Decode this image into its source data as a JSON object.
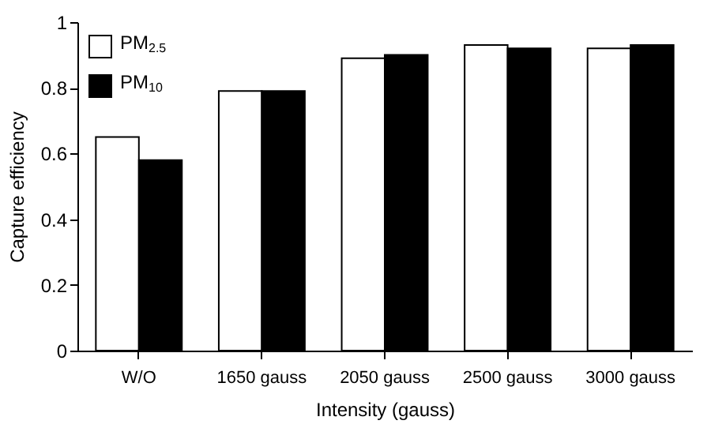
{
  "chart_data": {
    "type": "bar",
    "xlabel": "Intensity (gauss)",
    "ylabel": "Capture efficiency",
    "categories": [
      "W/O",
      "1650 gauss",
      "2050 gauss",
      "2500 gauss",
      "3000 gauss"
    ],
    "series": [
      {
        "name": "PM$_{2.5}$",
        "color": "#ffffff",
        "values": [
          0.65,
          0.79,
          0.89,
          0.93,
          0.92
        ]
      },
      {
        "name": "PM$_{10}$",
        "color": "#000000",
        "values": [
          0.58,
          0.79,
          0.9,
          0.92,
          0.93
        ]
      }
    ],
    "ylim": [
      0,
      1
    ],
    "yticks": [
      0,
      0.2,
      0.4,
      0.6,
      0.8,
      1
    ],
    "grid": false,
    "legend": "top left"
  }
}
